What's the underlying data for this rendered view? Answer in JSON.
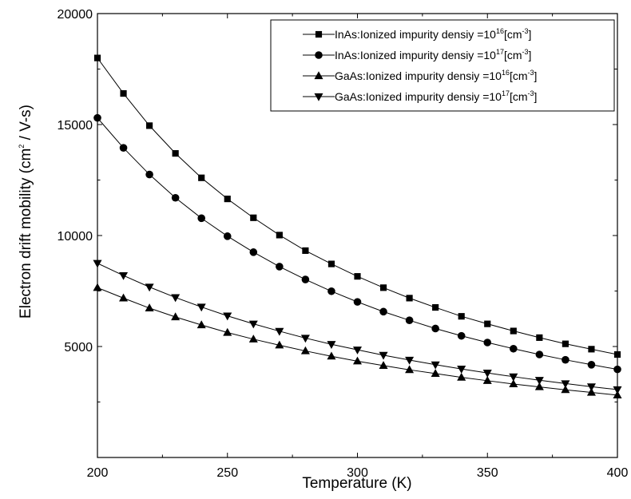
{
  "chart_data": {
    "type": "line",
    "xlabel": "Temperature (K)",
    "ylabel_main": "Electron drift mobility (cm",
    "ylabel_sup": "2",
    "ylabel_tail": " / V-s)",
    "xlim": [
      200,
      400
    ],
    "ylim": [
      0,
      20000
    ],
    "xticks": [
      200,
      250,
      300,
      350,
      400
    ],
    "yticks": [
      5000,
      10000,
      15000,
      20000
    ],
    "xtick_labels": [
      "200",
      "250",
      "300",
      "350",
      "400"
    ],
    "ytick_labels": [
      "5000",
      "10000",
      "15000",
      "20000"
    ],
    "grid": false,
    "legend_position": "top-right",
    "x": [
      200,
      210,
      220,
      230,
      240,
      250,
      260,
      270,
      280,
      290,
      300,
      310,
      320,
      330,
      340,
      350,
      360,
      370,
      380,
      390,
      400
    ],
    "series": [
      {
        "name": "InAs:Ionized impurity densiy =10",
        "name_sup": "16",
        "name_tail": "[cm",
        "name_sup2": "-3",
        "name_end": "]",
        "marker": "square",
        "values": [
          18000,
          16400,
          14950,
          13700,
          12600,
          11650,
          10800,
          10020,
          9320,
          8720,
          8160,
          7650,
          7180,
          6760,
          6360,
          6020,
          5700,
          5400,
          5120,
          4880,
          4640
        ]
      },
      {
        "name": "InAs:Ionized impurity densiy =10",
        "name_sup": "17",
        "name_tail": "[cm",
        "name_sup2": "-3",
        "name_end": "]",
        "marker": "circle",
        "values": [
          15300,
          13950,
          12750,
          11700,
          10780,
          9970,
          9250,
          8600,
          8020,
          7490,
          7010,
          6570,
          6180,
          5810,
          5480,
          5180,
          4900,
          4640,
          4400,
          4180,
          3970
        ]
      },
      {
        "name": "GaAs:Ionized impurity densiy =10",
        "name_sup": "16",
        "name_tail": "[cm",
        "name_sup2": "-3",
        "name_end": "]",
        "marker": "triangle-up",
        "values": [
          7650,
          7180,
          6730,
          6330,
          5970,
          5630,
          5330,
          5060,
          4800,
          4560,
          4340,
          4140,
          3950,
          3780,
          3610,
          3460,
          3310,
          3180,
          3050,
          2930,
          2810
        ]
      },
      {
        "name": "GaAs:Ionized impurity densiy =10",
        "name_sup": "17",
        "name_tail": "[cm",
        "name_sup2": "-3",
        "name_end": "]",
        "marker": "triangle-down",
        "values": [
          8750,
          8200,
          7680,
          7210,
          6780,
          6380,
          6020,
          5690,
          5380,
          5100,
          4850,
          4610,
          4390,
          4180,
          3990,
          3810,
          3640,
          3480,
          3330,
          3190,
          3060
        ]
      }
    ]
  }
}
